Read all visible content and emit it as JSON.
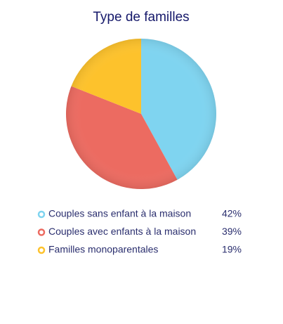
{
  "chart_data": {
    "type": "pie",
    "title": "Type de familles",
    "categories": [
      "Couples sans enfant à la maison",
      "Couples avec enfants à la maison",
      "Familles monoparentales"
    ],
    "values": [
      42,
      39,
      19
    ],
    "value_labels": [
      "42%",
      "39%",
      "19%"
    ],
    "colors": [
      "#7fd4f0",
      "#ec6b61",
      "#fdc22c"
    ]
  }
}
